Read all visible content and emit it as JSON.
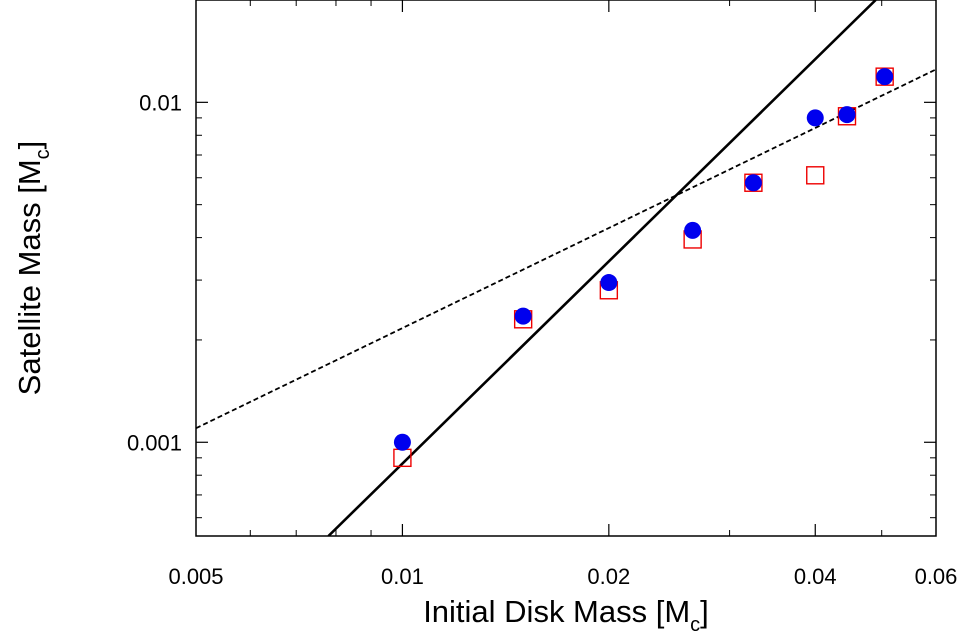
{
  "chart_data": {
    "type": "scatter",
    "title": "",
    "x_scale": "log",
    "y_scale": "log",
    "xlim": [
      0.005,
      0.06
    ],
    "ylim": [
      0.00053,
      0.02
    ],
    "xlabel": {
      "main": "Initial Disk Mass [M",
      "sub": "c",
      "close": "]"
    },
    "ylabel": {
      "main": "Satellite Mass [M",
      "sub": "c",
      "close": "]"
    },
    "x_ticks": [
      {
        "value": 0.005,
        "label": "0.005"
      },
      {
        "value": 0.01,
        "label": "0.01"
      },
      {
        "value": 0.02,
        "label": "0.02"
      },
      {
        "value": 0.04,
        "label": "0.04"
      },
      {
        "value": 0.06,
        "label": "0.06"
      }
    ],
    "y_ticks": [
      {
        "value": 0.001,
        "label": "0.001"
      },
      {
        "value": 0.01,
        "label": "0.01"
      }
    ],
    "series": [
      {
        "marker": "filled-circle",
        "color": "#0000ee",
        "x": [
          0.01,
          0.015,
          0.02,
          0.0265,
          0.0325,
          0.04,
          0.0445,
          0.0505
        ],
        "y": [
          0.001,
          0.00235,
          0.00295,
          0.0042,
          0.0058,
          0.009,
          0.0092,
          0.0119
        ]
      },
      {
        "marker": "open-square",
        "color": "#ee0000",
        "x": [
          0.01,
          0.015,
          0.02,
          0.0265,
          0.0325,
          0.04,
          0.0445,
          0.0505
        ],
        "y": [
          0.0009,
          0.0023,
          0.0028,
          0.00395,
          0.0058,
          0.0061,
          0.0091,
          0.0119
        ]
      }
    ],
    "lines": [
      {
        "style": "solid",
        "color": "#000000",
        "points": [
          [
            0.0078,
            0.00053
          ],
          [
            0.049,
            0.02
          ]
        ]
      },
      {
        "style": "dashed",
        "color": "#000000",
        "points": [
          [
            0.005,
            0.0011
          ],
          [
            0.06,
            0.0125
          ]
        ]
      }
    ],
    "grid": false,
    "legend": "none"
  }
}
